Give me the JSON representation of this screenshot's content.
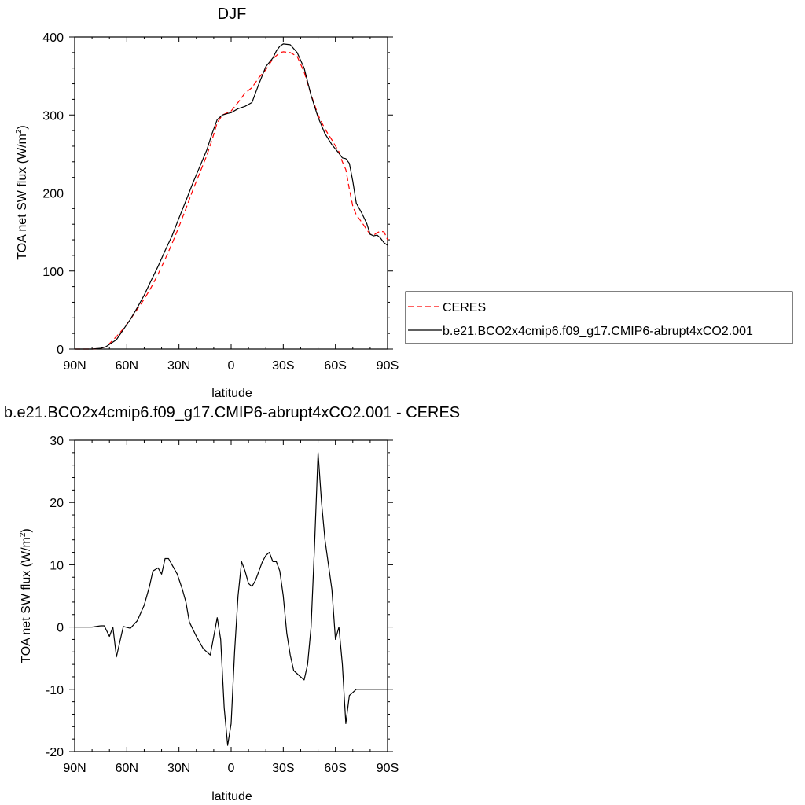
{
  "chart_data": [
    {
      "type": "line",
      "title": "DJF",
      "xlabel": "latitude",
      "ylabel": "TOA net SW flux (W/m",
      "ylabel_sup": "2",
      "ylabel_end": ")",
      "xlim": [
        90,
        -90
      ],
      "ylim": [
        0,
        400
      ],
      "xticks": [
        90,
        60,
        30,
        0,
        -30,
        -60,
        -90
      ],
      "xtick_labels": [
        "90N",
        "60N",
        "30N",
        "0",
        "30S",
        "60S",
        "90S"
      ],
      "yticks": [
        0,
        100,
        200,
        300,
        400
      ],
      "ytick_labels": [
        "0",
        "100",
        "200",
        "300",
        "400"
      ],
      "legend_position": "right",
      "series": [
        {
          "name": "CERES",
          "color": "#ff0000",
          "style": "dashed",
          "x": [
            90,
            85,
            80,
            75,
            72,
            70,
            66,
            62,
            58,
            54,
            50,
            46,
            42,
            38,
            34,
            30,
            26,
            22,
            18,
            14,
            11,
            8,
            5,
            2,
            0,
            -4,
            -8,
            -12,
            -16,
            -20,
            -24,
            -26,
            -28,
            -30,
            -34,
            -38,
            -42,
            -46,
            -50,
            -54,
            -58,
            -62,
            -64,
            -66,
            -68,
            -70,
            -72,
            -75,
            -78,
            -80,
            -82,
            -84,
            -86,
            -88,
            -90
          ],
          "y": [
            0,
            0,
            0,
            1,
            3,
            7,
            16,
            26,
            38,
            51,
            64,
            79,
            96,
            115,
            135,
            157,
            180,
            204,
            226,
            248,
            268,
            290,
            300,
            303,
            305,
            316,
            328,
            335,
            348,
            358,
            372,
            376,
            380,
            381,
            380,
            375,
            355,
            326,
            300,
            282,
            268,
            253,
            240,
            230,
            205,
            183,
            172,
            163,
            153,
            147,
            146,
            149,
            151,
            150,
            140
          ]
        },
        {
          "name": "b.e21.BCO2x4cmip6.f09_g17.CMIP6-abrupt4xCO2.001",
          "color": "#000000",
          "style": "solid",
          "x": [
            90,
            85,
            80,
            75,
            72,
            70,
            66,
            62,
            58,
            54,
            50,
            46,
            42,
            38,
            34,
            30,
            26,
            22,
            18,
            14,
            11,
            8,
            5,
            2,
            0,
            -4,
            -8,
            -12,
            -16,
            -20,
            -24,
            -26,
            -28,
            -30,
            -34,
            -38,
            -42,
            -46,
            -50,
            -54,
            -58,
            -62,
            -64,
            -66,
            -68,
            -70,
            -72,
            -75,
            -78,
            -80,
            -82,
            -84,
            -86,
            -88,
            -90
          ],
          "y": [
            0,
            0,
            0,
            1,
            3,
            6,
            12,
            25,
            38,
            53,
            69,
            88,
            106,
            126,
            145,
            168,
            190,
            213,
            234,
            255,
            276,
            294,
            300,
            302,
            303,
            308,
            311,
            316,
            340,
            362,
            373,
            382,
            388,
            391,
            390,
            380,
            360,
            325,
            297,
            276,
            262,
            251,
            245,
            244,
            238,
            215,
            187,
            175,
            161,
            147,
            145,
            146,
            142,
            136,
            133
          ]
        }
      ]
    },
    {
      "type": "line",
      "title": "b.e21.BCO2x4cmip6.f09_g17.CMIP6-abrupt4xCO2.001 - CERES",
      "xlabel": "latitude",
      "ylabel": "TOA net SW flux (W/m",
      "ylabel_sup": "2",
      "ylabel_end": ")",
      "xlim": [
        90,
        -90
      ],
      "ylim": [
        -20,
        30
      ],
      "xticks": [
        90,
        60,
        30,
        0,
        -30,
        -60,
        -90
      ],
      "xtick_labels": [
        "90N",
        "60N",
        "30N",
        "0",
        "30S",
        "60S",
        "90S"
      ],
      "yticks": [
        -20,
        -10,
        0,
        10,
        20,
        30
      ],
      "ytick_labels": [
        "-20",
        "-10",
        "0",
        "10",
        "20",
        "30"
      ],
      "series": [
        {
          "color": "#000000",
          "style": "solid",
          "x": [
            90,
            85,
            80,
            75,
            73,
            70,
            68,
            66,
            62,
            58,
            54,
            50,
            47,
            45,
            42,
            40,
            38,
            36,
            34,
            31,
            28,
            26,
            24,
            20,
            16,
            12,
            8,
            6,
            4,
            2,
            0,
            -2,
            -4,
            -6,
            -8,
            -10,
            -12,
            -14,
            -16,
            -18,
            -20,
            -22,
            -24,
            -26,
            -28,
            -30,
            -32,
            -34,
            -36,
            -38,
            -40,
            -42,
            -44,
            -46,
            -48,
            -50,
            -52,
            -54,
            -56,
            -58,
            -60,
            -62,
            -64,
            -66,
            -68,
            -70,
            -72,
            -74,
            -76,
            -78,
            -80,
            -82,
            -84,
            -86,
            -88,
            -90
          ],
          "y": [
            0,
            0,
            0,
            0.2,
            0.2,
            -1.5,
            0,
            -4.8,
            0.1,
            -0.2,
            1,
            3.5,
            6.5,
            9,
            9.5,
            8.5,
            11,
            11,
            10,
            8.5,
            6,
            4,
            0.8,
            -1.5,
            -3.5,
            -4.5,
            1.5,
            -2,
            -13,
            -19,
            -15.5,
            -4,
            5,
            10.5,
            9,
            7,
            6.5,
            7.5,
            9,
            10.5,
            11.5,
            12,
            10.5,
            10.5,
            9,
            5,
            -1,
            -4.5,
            -7,
            -7.5,
            -8,
            -8.5,
            -6,
            0,
            13,
            28,
            20,
            14,
            10,
            6,
            -2,
            0,
            -6,
            -15.5,
            -11,
            -10.5,
            -10,
            -10,
            -10,
            -10,
            -10,
            -10,
            -10,
            -10,
            -10,
            -10
          ]
        }
      ]
    }
  ]
}
